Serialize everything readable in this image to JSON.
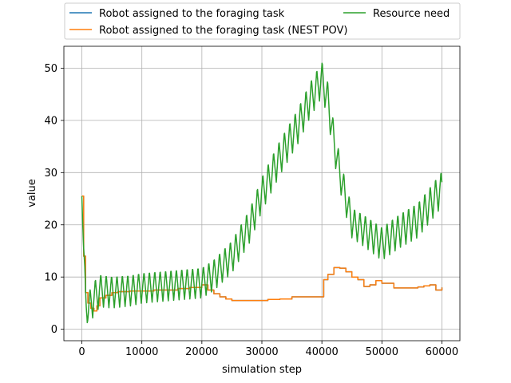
{
  "chart_data": {
    "type": "line",
    "xlabel": "simulation step",
    "ylabel": "value",
    "xlim": [
      -3000,
      63000
    ],
    "ylim": [
      -2.2,
      54.2
    ],
    "xticks": [
      0,
      10000,
      20000,
      30000,
      40000,
      50000,
      60000
    ],
    "yticks": [
      0,
      10,
      20,
      30,
      40,
      50
    ],
    "grid": true,
    "legend_placement": "top (above plot), two columns",
    "series": [
      {
        "name": "Robot assigned to the foraging task",
        "color": "#1f77b4",
        "x": [
          0,
          300,
          600,
          1000,
          1500,
          2000,
          2500,
          3000,
          4000,
          5000,
          6000,
          8000,
          10000,
          12000,
          14000,
          16000,
          18000,
          20000,
          21000,
          22000,
          23000,
          24000,
          25000,
          28000,
          30000,
          31000,
          33000,
          35000,
          37000,
          39000,
          40000,
          40300,
          41000,
          42000,
          43000,
          44000,
          45000,
          46000,
          47000,
          48000,
          49000,
          50000,
          52000,
          54000,
          56000,
          57000,
          58000,
          59000,
          60000
        ],
        "values": [
          25.5,
          14,
          7,
          5,
          4,
          3.5,
          4.5,
          6,
          6.5,
          7,
          7.2,
          7.3,
          7.3,
          7.5,
          7.5,
          7.8,
          8,
          8.5,
          7.5,
          6.8,
          6.2,
          5.8,
          5.5,
          5.5,
          5.5,
          5.7,
          5.8,
          6.2,
          6.2,
          6.2,
          6.2,
          9.5,
          10.5,
          11.8,
          11.7,
          11,
          10,
          9.5,
          8.2,
          8.5,
          9.3,
          8.8,
          7.9,
          7.9,
          8.1,
          8.3,
          8.5,
          7.5,
          8.0
        ]
      },
      {
        "name": "Robot assigned to the foraging task (NEST POV)",
        "color": "#ff7f0e",
        "x": [
          0,
          300,
          600,
          1000,
          1500,
          2000,
          2500,
          3000,
          4000,
          5000,
          6000,
          8000,
          10000,
          12000,
          14000,
          16000,
          18000,
          20000,
          21000,
          22000,
          23000,
          24000,
          25000,
          28000,
          30000,
          31000,
          33000,
          35000,
          37000,
          39000,
          40000,
          40300,
          41000,
          42000,
          43000,
          44000,
          45000,
          46000,
          47000,
          48000,
          49000,
          50000,
          52000,
          54000,
          56000,
          57000,
          58000,
          59000,
          60000
        ],
        "values": [
          25.5,
          14,
          7,
          5,
          4,
          3.5,
          4.5,
          6,
          6.5,
          7,
          7.2,
          7.3,
          7.3,
          7.5,
          7.5,
          7.8,
          8,
          8.5,
          7.5,
          6.8,
          6.2,
          5.8,
          5.5,
          5.5,
          5.5,
          5.7,
          5.8,
          6.2,
          6.2,
          6.2,
          6.2,
          9.5,
          10.5,
          11.8,
          11.7,
          11,
          10,
          9.5,
          8.2,
          8.5,
          9.3,
          8.8,
          7.9,
          7.9,
          8.1,
          8.3,
          8.5,
          7.5,
          8.0
        ]
      },
      {
        "name": "Resource need",
        "color": "#2ca02c",
        "trend_x": [
          0,
          300,
          700,
          1000,
          1500,
          2000,
          3000,
          5000,
          8000,
          10000,
          15000,
          20000,
          22000,
          25000,
          28000,
          30000,
          33000,
          36000,
          38000,
          40000,
          41000,
          42000,
          43000,
          44000,
          45000,
          47000,
          50000,
          53000,
          56000,
          58000,
          60000
        ],
        "trend_values": [
          25.5,
          15,
          5,
          3.5,
          5,
          6,
          7.5,
          7.2,
          7.5,
          8,
          8.5,
          9,
          10.5,
          14,
          20,
          26,
          33,
          39,
          44,
          48,
          44,
          36,
          30,
          25,
          20.5,
          19,
          16.5,
          19,
          21,
          24,
          27
        ],
        "oscillation_period": 900,
        "amplitude_x": [
          0,
          700,
          1500,
          3000,
          10000,
          20000,
          25000,
          30000,
          40000,
          42000,
          45000,
          50000,
          60000
        ],
        "amplitude_values": [
          0,
          2.5,
          3.5,
          3.2,
          3.0,
          3.0,
          3.2,
          3.4,
          3.5,
          3.5,
          3.0,
          3.3,
          3.5
        ]
      }
    ]
  }
}
